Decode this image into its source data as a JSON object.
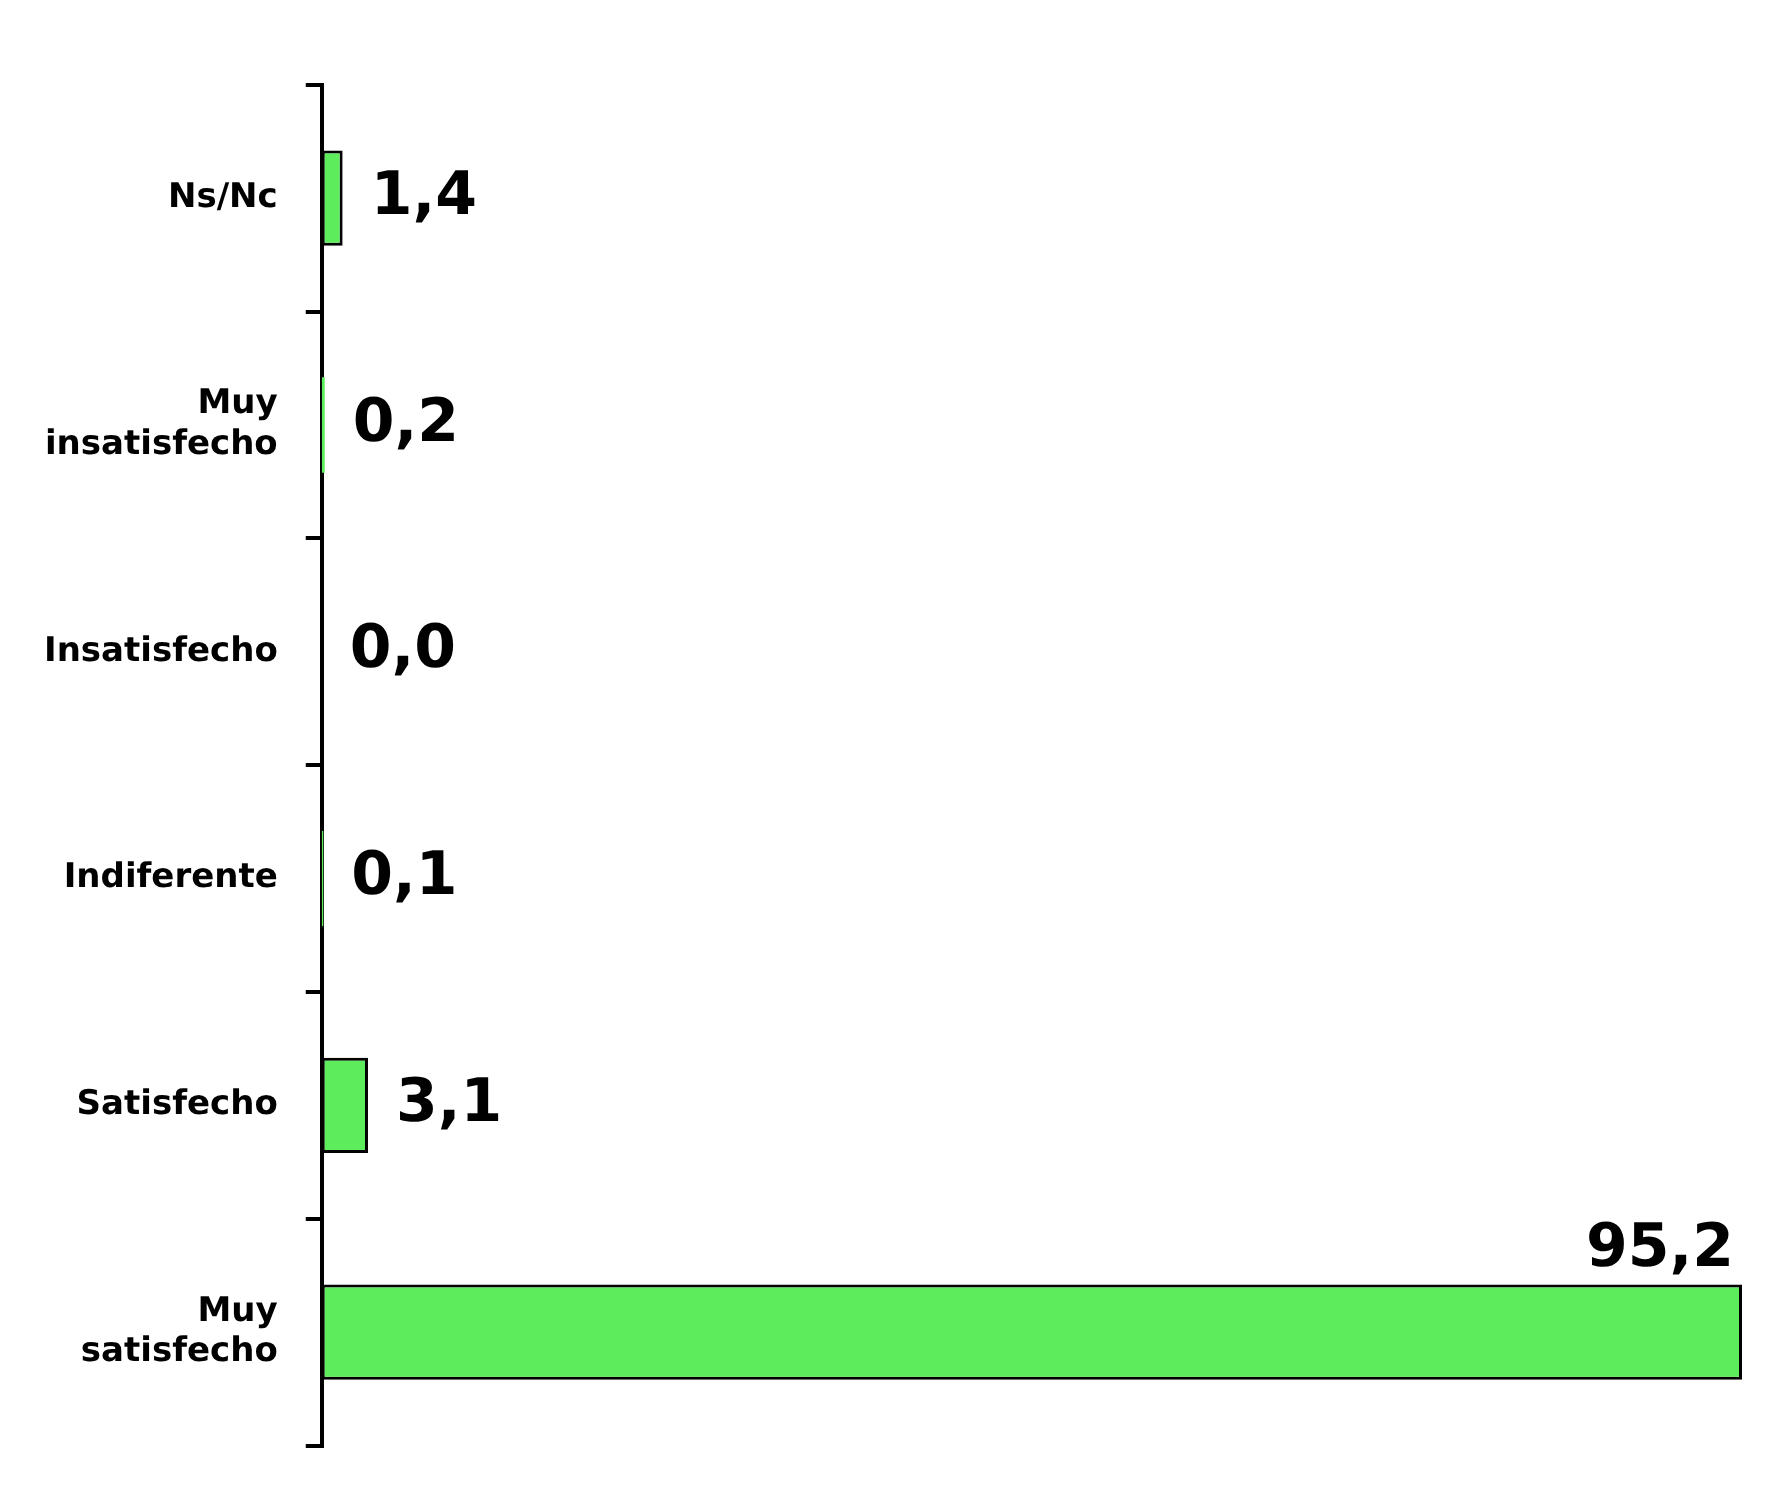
{
  "chart_data": {
    "type": "bar",
    "orientation": "horizontal",
    "categories": [
      "Ns/Nc",
      "Muy\ninsatisfecho",
      "Insatisfecho",
      "Indiferente",
      "Satisfecho",
      "Muy\nsatisfecho"
    ],
    "values": [
      1.4,
      0.2,
      0.0,
      0.1,
      3.1,
      95.2
    ],
    "value_labels": [
      "1,4",
      "0,2",
      "0,0",
      "0,1",
      "3,1",
      "95,2"
    ],
    "color": "#5cec5c",
    "xlim": [
      0,
      95.2
    ],
    "tick_labels": "y",
    "legend": false
  }
}
